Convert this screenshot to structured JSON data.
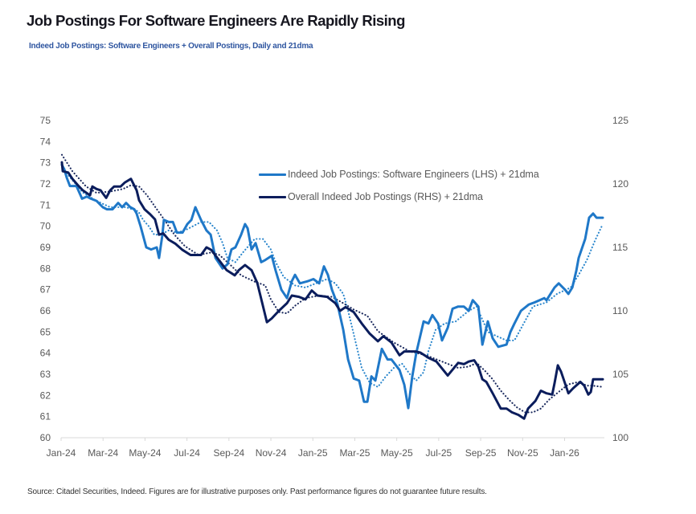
{
  "header": {
    "title": "Job Postings For Software Engineers Are Rapidly Rising",
    "subtitle": "Indeed Job Postings: Software Engineers + Overall Postings, Daily and 21dma"
  },
  "footer": {
    "source": "Source: Citadel Securities, Indeed. Figures are for illustrative purposes only. Past performance figures do not guarantee future results."
  },
  "chart_data": {
    "type": "line",
    "title": "Job Postings For Software Engineers Are Rapidly Rising",
    "subtitle": "Indeed Job Postings: Software Engineers + Overall Postings, Daily and 21dma",
    "xlabel": "",
    "x_unit": "months since Jan-2024",
    "xlim": [
      0,
      25.82
    ],
    "x_ticks": [
      0,
      2,
      4,
      6,
      8,
      10,
      12,
      14,
      16,
      18,
      20,
      22,
      24
    ],
    "x_tick_labels": [
      "Jan-24",
      "Mar-24",
      "May-24",
      "Jul-24",
      "Sep-24",
      "Nov-24",
      "Jan-25",
      "Mar-25",
      "May-25",
      "Jul-25",
      "Sep-25",
      "Nov-25",
      "Jan-26"
    ],
    "y_left": {
      "label": "",
      "ylim": [
        60,
        75
      ],
      "ticks": [
        60,
        61,
        62,
        63,
        64,
        65,
        66,
        67,
        68,
        69,
        70,
        71,
        72,
        73,
        74,
        75
      ]
    },
    "y_right": {
      "label": "",
      "ylim": [
        100,
        125
      ],
      "ticks": [
        100,
        105,
        110,
        115,
        120,
        125
      ]
    },
    "grid": false,
    "legend": {
      "position": "top-center",
      "entries": [
        {
          "label": "Indeed Job Postings: Software Engineers (LHS) + 21dma",
          "color": "#1f78c8"
        },
        {
          "label": "Overall Indeed Job Postings (RHS) + 21dma",
          "color": "#0b1d5c"
        }
      ]
    },
    "series": [
      {
        "name": "Indeed Job Postings: Software Engineers (LHS) 21dma",
        "axis": "left",
        "style": "dotted",
        "color": "#2a86cc",
        "x": [
          0.27,
          1.03,
          1.69,
          2.34,
          3.1,
          3.68,
          3.91,
          4.18,
          4.44,
          4.75,
          5.13,
          5.52,
          5.9,
          6.28,
          6.67,
          7.05,
          7.43,
          7.7,
          7.93,
          8.31,
          8.7,
          9.23,
          9.62,
          10.0,
          10.23,
          10.61,
          11.15,
          11.65,
          12.15,
          12.68,
          13.07,
          13.45,
          13.68,
          13.95,
          14.33,
          14.71,
          15.1,
          15.48,
          15.86,
          16.25,
          16.63,
          16.93,
          17.28,
          17.51,
          17.85,
          18.28,
          18.81,
          19.43,
          19.81,
          20.34,
          20.77,
          21.23,
          21.61,
          22.49,
          23.14,
          23.64,
          24.29,
          24.67,
          25.06,
          25.44,
          25.82
        ],
        "y": [
          72.5,
          71.6,
          71.2,
          70.9,
          70.9,
          70.7,
          70.3,
          70.0,
          69.6,
          69.6,
          69.8,
          69.7,
          69.8,
          70.0,
          70.2,
          70.2,
          69.8,
          69.2,
          68.5,
          68.3,
          68.8,
          69.4,
          69.4,
          68.9,
          68.3,
          67.6,
          67.2,
          67.1,
          67.3,
          67.5,
          67.3,
          66.8,
          66.0,
          64.9,
          63.3,
          62.6,
          62.4,
          62.9,
          63.3,
          63.5,
          63.0,
          62.7,
          63.1,
          64.1,
          65.1,
          65.4,
          65.5,
          66.0,
          66.2,
          65.0,
          64.8,
          64.6,
          64.6,
          66.2,
          66.4,
          66.8,
          67.1,
          67.7,
          68.4,
          69.3,
          70.1
        ]
      },
      {
        "name": "Overall Indeed Job Postings (RHS) 21dma",
        "axis": "right",
        "style": "dotted",
        "color": "#1b2a5e",
        "x": [
          0.04,
          0.54,
          1.19,
          1.69,
          2.34,
          2.95,
          3.33,
          3.72,
          4.1,
          4.48,
          4.87,
          5.4,
          5.9,
          6.55,
          7.16,
          7.55,
          8.08,
          8.58,
          9.23,
          9.73,
          10.0,
          10.38,
          10.77,
          11.15,
          11.65,
          12.3,
          12.91,
          13.45,
          13.95,
          14.6,
          15.1,
          15.86,
          16.63,
          17.39,
          18.16,
          18.93,
          19.43,
          19.81,
          20.19,
          20.57,
          20.96,
          21.34,
          21.72,
          22.11,
          22.49,
          22.87,
          23.26,
          23.79,
          24.18,
          24.67,
          25.06,
          25.33,
          25.82
        ],
        "y": [
          122.3,
          121.0,
          119.8,
          119.3,
          119.4,
          119.6,
          119.9,
          119.8,
          119.1,
          118.2,
          117.3,
          116.0,
          115.1,
          114.4,
          114.6,
          114.4,
          113.6,
          112.8,
          112.3,
          112.0,
          110.9,
          109.9,
          109.8,
          110.4,
          111.0,
          111.2,
          111.1,
          110.6,
          110.1,
          109.6,
          108.4,
          107.5,
          106.8,
          106.5,
          106.0,
          105.5,
          105.6,
          105.9,
          105.3,
          104.6,
          103.7,
          103.0,
          102.4,
          102.0,
          102.0,
          102.3,
          103.0,
          103.7,
          104.2,
          104.4,
          104.1,
          104.1,
          104.0
        ]
      },
      {
        "name": "Indeed Job Postings: Software Engineers (LHS)",
        "axis": "left",
        "style": "solid",
        "color": "#1f78c8",
        "x": [
          0.04,
          0.15,
          0.27,
          0.42,
          0.73,
          1.0,
          1.23,
          1.42,
          1.69,
          1.99,
          2.18,
          2.45,
          2.72,
          2.91,
          3.1,
          3.3,
          3.49,
          3.6,
          3.79,
          4.06,
          4.29,
          4.56,
          4.67,
          4.83,
          4.9,
          5.13,
          5.33,
          5.52,
          5.79,
          6.02,
          6.21,
          6.4,
          6.67,
          6.93,
          7.13,
          7.36,
          7.7,
          7.93,
          8.12,
          8.31,
          8.58,
          8.77,
          8.89,
          9.08,
          9.27,
          9.54,
          9.73,
          10.04,
          10.23,
          10.5,
          10.77,
          11.0,
          11.15,
          11.38,
          11.76,
          12.03,
          12.3,
          12.53,
          12.72,
          12.91,
          13.18,
          13.45,
          13.68,
          13.95,
          14.21,
          14.44,
          14.6,
          14.79,
          14.98,
          15.29,
          15.56,
          15.75,
          16.13,
          16.36,
          16.55,
          16.74,
          16.93,
          17.28,
          17.51,
          17.7,
          17.97,
          18.16,
          18.43,
          18.66,
          18.93,
          19.2,
          19.43,
          19.62,
          19.89,
          20.08,
          20.34,
          20.57,
          20.84,
          21.23,
          21.42,
          21.61,
          21.92,
          22.3,
          22.57,
          23.03,
          23.14,
          23.52,
          23.72,
          24.02,
          24.18,
          24.37,
          24.56,
          24.67,
          24.98,
          25.17,
          25.36,
          25.52,
          25.82
        ],
        "y": [
          72.9,
          72.7,
          72.3,
          71.9,
          71.9,
          71.3,
          71.4,
          71.3,
          71.2,
          70.9,
          70.8,
          70.8,
          71.1,
          70.9,
          71.1,
          70.9,
          70.8,
          70.6,
          70.0,
          69.0,
          68.9,
          69.0,
          68.5,
          69.6,
          70.3,
          70.2,
          70.2,
          69.7,
          69.7,
          70.1,
          70.3,
          70.9,
          70.3,
          69.8,
          69.6,
          68.5,
          68.0,
          68.2,
          68.9,
          69.0,
          69.6,
          70.1,
          69.9,
          68.9,
          69.2,
          68.3,
          68.4,
          68.6,
          67.9,
          67.0,
          66.6,
          67.4,
          67.7,
          67.3,
          67.4,
          67.5,
          67.3,
          68.1,
          67.7,
          67.0,
          66.3,
          65.1,
          63.7,
          62.8,
          62.7,
          61.7,
          61.7,
          62.9,
          62.7,
          64.2,
          63.7,
          63.7,
          63.2,
          62.5,
          61.4,
          62.9,
          64.0,
          65.5,
          65.4,
          65.8,
          65.4,
          64.6,
          65.2,
          66.1,
          66.2,
          66.2,
          66.0,
          66.5,
          66.2,
          64.4,
          65.5,
          64.7,
          64.3,
          64.4,
          65.0,
          65.4,
          66.0,
          66.3,
          66.4,
          66.6,
          66.5,
          67.1,
          67.3,
          67.0,
          66.8,
          67.1,
          67.9,
          68.5,
          69.4,
          70.4,
          70.6,
          70.4,
          70.4
        ]
      },
      {
        "name": "Overall Indeed Job Postings (RHS)",
        "axis": "right",
        "style": "solid",
        "color": "#0b1d5c",
        "x": [
          0.04,
          0.08,
          0.34,
          0.54,
          0.8,
          1.03,
          1.38,
          1.49,
          1.69,
          1.88,
          2.15,
          2.34,
          2.53,
          2.84,
          3.03,
          3.33,
          3.6,
          3.72,
          3.98,
          4.25,
          4.48,
          4.67,
          4.87,
          5.13,
          5.44,
          5.79,
          6.17,
          6.4,
          6.67,
          6.93,
          7.16,
          7.43,
          7.89,
          8.28,
          8.47,
          8.77,
          9.08,
          9.35,
          9.62,
          9.81,
          10.04,
          10.38,
          10.77,
          11.0,
          11.34,
          11.65,
          11.95,
          12.22,
          12.68,
          13.07,
          13.3,
          13.56,
          13.95,
          14.33,
          14.71,
          15.1,
          15.36,
          15.75,
          16.13,
          16.36,
          16.9,
          17.13,
          17.51,
          17.89,
          18.43,
          18.93,
          19.2,
          19.43,
          19.69,
          19.89,
          20.08,
          20.27,
          20.57,
          20.96,
          21.23,
          21.49,
          21.8,
          22.07,
          22.26,
          22.61,
          22.87,
          23.14,
          23.41,
          23.52,
          23.68,
          23.83,
          24.18,
          24.41,
          24.75,
          24.94,
          25.13,
          25.25,
          25.36,
          25.82
        ],
        "y": [
          121.7,
          121.0,
          120.9,
          120.4,
          119.9,
          119.5,
          119.1,
          119.8,
          119.6,
          119.5,
          118.9,
          119.5,
          119.8,
          119.8,
          120.1,
          120.4,
          119.5,
          118.7,
          118.0,
          117.6,
          117.2,
          116.0,
          116.1,
          115.6,
          115.3,
          114.8,
          114.4,
          114.4,
          114.4,
          115.0,
          114.8,
          114.2,
          113.2,
          112.8,
          113.2,
          113.6,
          113.2,
          112.2,
          110.4,
          109.1,
          109.4,
          110.0,
          110.6,
          111.2,
          111.1,
          110.9,
          111.6,
          111.2,
          111.1,
          110.6,
          110.0,
          110.3,
          109.9,
          109.0,
          108.2,
          107.6,
          108.0,
          107.5,
          106.5,
          106.8,
          106.8,
          106.7,
          106.3,
          106.0,
          104.9,
          105.9,
          105.8,
          106.0,
          106.1,
          105.6,
          104.6,
          104.4,
          103.5,
          102.3,
          102.3,
          102.0,
          101.8,
          101.5,
          102.3,
          102.9,
          103.7,
          103.5,
          103.4,
          104.3,
          105.7,
          105.2,
          103.5,
          103.9,
          104.4,
          104.1,
          103.4,
          103.6,
          104.6,
          104.6
        ]
      }
    ]
  }
}
